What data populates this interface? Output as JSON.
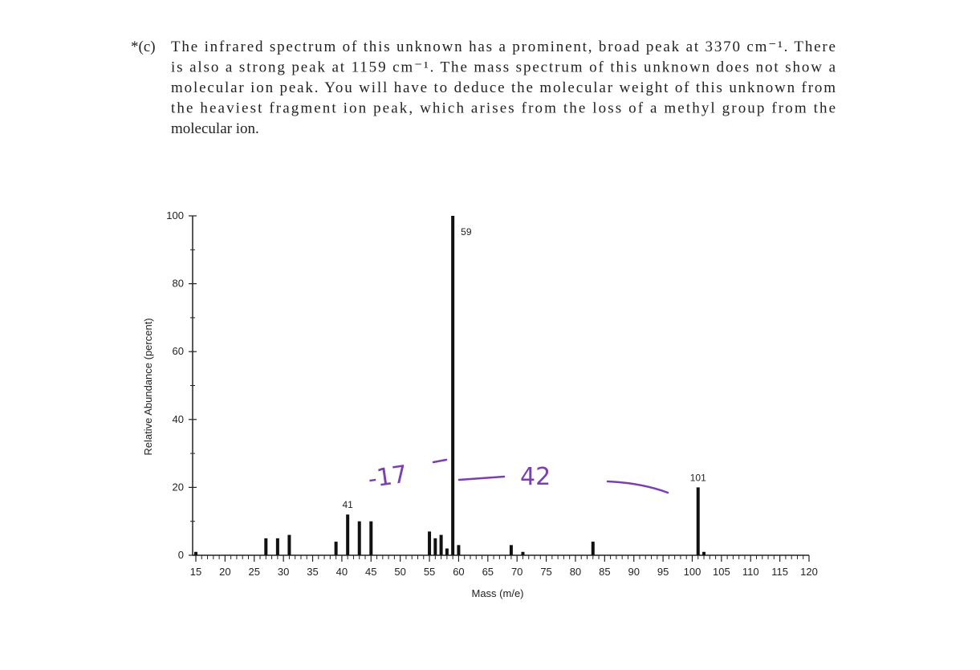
{
  "problem": {
    "label": "*(c)",
    "lines": [
      "The infrared spectrum of this unknown has a prominent, broad peak at 3370 cm⁻¹. There",
      "is also a strong peak at 1159 cm⁻¹. The mass spectrum of this unknown does not show a",
      "molecular ion peak. You will have to deduce the molecular weight of this unknown from",
      "the heaviest fragment ion peak, which arises from the loss of a methyl group from the",
      "molecular ion."
    ]
  },
  "chart_data": {
    "type": "bar",
    "xlabel": "Mass (m/e)",
    "ylabel": "Relative Abundance (percent)",
    "x": [
      15,
      27,
      29,
      31,
      39,
      41,
      43,
      45,
      55,
      56,
      57,
      58,
      59,
      60,
      69,
      71,
      83,
      101,
      102
    ],
    "values": [
      1,
      5,
      5,
      6,
      4,
      12,
      10,
      10,
      7,
      5,
      6,
      2,
      100,
      3,
      3,
      1,
      4,
      20,
      1
    ],
    "color": "#111111",
    "xlim": [
      15,
      120
    ],
    "xticks": [
      15,
      20,
      25,
      30,
      35,
      40,
      45,
      50,
      55,
      60,
      65,
      70,
      75,
      80,
      85,
      90,
      95,
      100,
      105,
      110,
      115,
      120
    ],
    "ylim": [
      0,
      100
    ],
    "yticks": [
      0,
      20,
      40,
      60,
      80,
      100
    ],
    "annotations": [
      {
        "text": "41",
        "x": 41
      },
      {
        "text": "59",
        "x": 59
      },
      {
        "text": "101",
        "x": 101
      }
    ],
    "handwriting": [
      "-17",
      "42"
    ]
  }
}
